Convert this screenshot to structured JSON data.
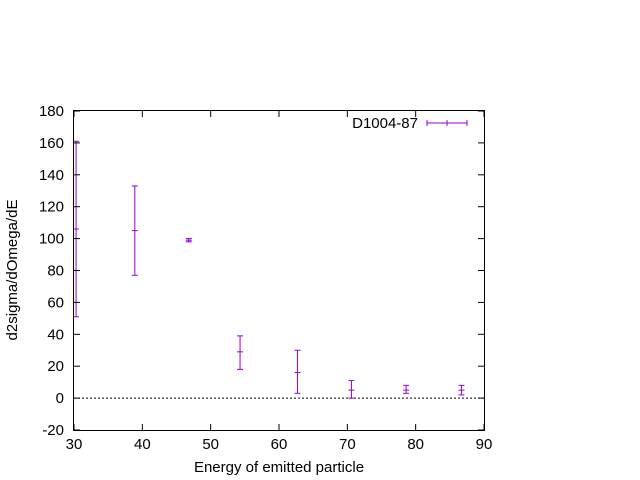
{
  "chart_data": {
    "type": "scatter",
    "title": "",
    "xlabel": "Energy of emitted particle",
    "ylabel": "d2sigma/dOmega/dE",
    "xlim": [
      30,
      90
    ],
    "ylim": [
      -20,
      180
    ],
    "x_ticks": [
      "30",
      "40",
      "50",
      "60",
      "70",
      "80",
      "90"
    ],
    "y_ticks": [
      "-20",
      "0",
      "20",
      "40",
      "60",
      "80",
      "100",
      "120",
      "140",
      "160",
      "180"
    ],
    "grid": false,
    "legend_position": "top-right",
    "zero_line": true,
    "series": [
      {
        "name": "D1004-87",
        "color": "#9400d3",
        "marker": "errorbar",
        "points": [
          {
            "x": 30.3,
            "y": 106,
            "ylow": 51,
            "yhigh": 161
          },
          {
            "x": 38.9,
            "y": 105,
            "ylow": 77,
            "yhigh": 133
          },
          {
            "x": 46.8,
            "y": 99,
            "ylow": 98,
            "yhigh": 100
          },
          {
            "x": 54.3,
            "y": 29,
            "ylow": 18,
            "yhigh": 39
          },
          {
            "x": 62.7,
            "y": 16,
            "ylow": 3,
            "yhigh": 30
          },
          {
            "x": 70.6,
            "y": 5,
            "ylow": 0,
            "yhigh": 11
          },
          {
            "x": 78.6,
            "y": 5,
            "ylow": 3,
            "yhigh": 8
          },
          {
            "x": 86.7,
            "y": 5,
            "ylow": 2,
            "yhigh": 8
          }
        ]
      }
    ]
  }
}
